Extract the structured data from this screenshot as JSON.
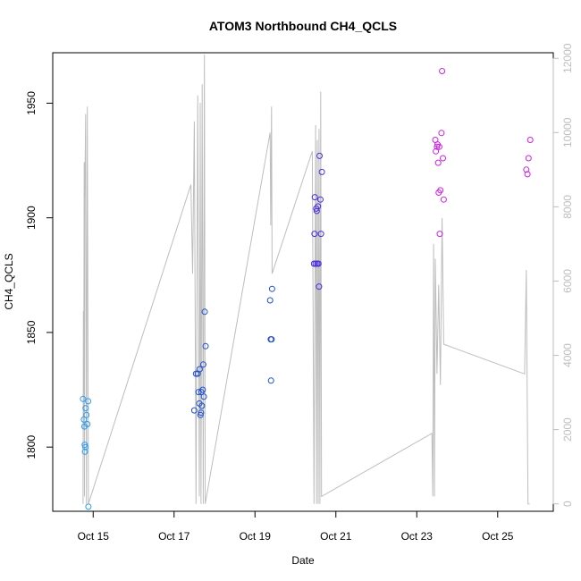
{
  "chart_data": {
    "type": "scatter",
    "title": "ATOM3 Northbound CH4_QCLS",
    "xlabel": "Date",
    "ylabel": "CH4_QCLS",
    "xlim": [
      "2017-10-14 00:00",
      "2017-10-26 09:00"
    ],
    "ylim": [
      1772,
      1972
    ],
    "x_ticks": [
      {
        "label": "Oct 15",
        "x": "2017-10-15 00:00"
      },
      {
        "label": "Oct 17",
        "x": "2017-10-17 00:00"
      },
      {
        "label": "Oct 19",
        "x": "2017-10-19 00:00"
      },
      {
        "label": "Oct 21",
        "x": "2017-10-21 00:00"
      },
      {
        "label": "Oct 23",
        "x": "2017-10-23 00:00"
      },
      {
        "label": "Oct 25",
        "x": "2017-10-25 00:00"
      }
    ],
    "y_ticks": [
      1800,
      1850,
      1900,
      1950
    ],
    "y2_ticks": [
      0,
      2000,
      4000,
      6000,
      8000,
      10000,
      12000
    ],
    "y2lim": [
      -200,
      12150
    ],
    "grid": false,
    "series": [
      {
        "style": "points",
        "color": "#2a9df4",
        "points": [
          [
            "2017-10-14 18:00",
            1821
          ],
          [
            "2017-10-14 18:30",
            1812
          ],
          [
            "2017-10-14 18:50",
            1809
          ],
          [
            "2017-10-14 19:00",
            1801
          ],
          [
            "2017-10-14 19:10",
            1798
          ],
          [
            "2017-10-14 19:20",
            1800
          ],
          [
            "2017-10-14 19:30",
            1817
          ],
          [
            "2017-10-14 20:00",
            1814
          ],
          [
            "2017-10-14 20:30",
            1810
          ],
          [
            "2017-10-14 21:00",
            1820
          ],
          [
            "2017-10-14 21:10",
            1774
          ]
        ]
      },
      {
        "style": "points",
        "color": "#1f4fd1",
        "points": [
          [
            "2017-10-17 12:00",
            1816
          ],
          [
            "2017-10-17 13:00",
            1832
          ],
          [
            "2017-10-17 14:00",
            1832
          ],
          [
            "2017-10-17 14:30",
            1824
          ],
          [
            "2017-10-17 15:00",
            1819
          ],
          [
            "2017-10-17 15:10",
            1834
          ],
          [
            "2017-10-17 15:40",
            1814
          ],
          [
            "2017-10-17 16:00",
            1815
          ],
          [
            "2017-10-17 16:10",
            1824
          ],
          [
            "2017-10-17 16:30",
            1818
          ],
          [
            "2017-10-17 17:00",
            1825
          ],
          [
            "2017-10-17 17:20",
            1836
          ],
          [
            "2017-10-17 17:40",
            1822
          ],
          [
            "2017-10-17 18:10",
            1859
          ],
          [
            "2017-10-17 18:40",
            1844
          ],
          [
            "2017-10-19 09:00",
            1864
          ],
          [
            "2017-10-19 09:20",
            1847
          ],
          [
            "2017-10-19 09:30",
            1829
          ],
          [
            "2017-10-19 09:50",
            1847
          ],
          [
            "2017-10-19 10:10",
            1869
          ]
        ]
      },
      {
        "style": "points",
        "color": "#4b2de0",
        "points": [
          [
            "2017-10-20 11:00",
            1880
          ],
          [
            "2017-10-20 11:20",
            1893
          ],
          [
            "2017-10-20 11:30",
            1909
          ],
          [
            "2017-10-20 12:00",
            1880
          ],
          [
            "2017-10-20 12:20",
            1904
          ],
          [
            "2017-10-20 12:40",
            1903
          ],
          [
            "2017-10-20 13:00",
            1880
          ],
          [
            "2017-10-20 13:20",
            1905
          ],
          [
            "2017-10-20 13:40",
            1880
          ],
          [
            "2017-10-20 14:00",
            1870
          ],
          [
            "2017-10-20 14:20",
            1927
          ],
          [
            "2017-10-20 14:50",
            1908
          ],
          [
            "2017-10-20 15:10",
            1893
          ],
          [
            "2017-10-20 15:40",
            1920
          ]
        ]
      },
      {
        "style": "points",
        "color": "#cc22e0",
        "points": [
          [
            "2017-10-23 11:00",
            1934
          ],
          [
            "2017-10-23 11:20",
            1929
          ],
          [
            "2017-10-23 12:00",
            1931
          ],
          [
            "2017-10-23 12:20",
            1932
          ],
          [
            "2017-10-23 12:40",
            1924
          ],
          [
            "2017-10-23 13:00",
            1911
          ],
          [
            "2017-10-23 13:20",
            1931
          ],
          [
            "2017-10-23 13:40",
            1893
          ],
          [
            "2017-10-23 14:00",
            1912
          ],
          [
            "2017-10-23 14:40",
            1937
          ],
          [
            "2017-10-23 15:00",
            1964
          ],
          [
            "2017-10-23 15:30",
            1926
          ],
          [
            "2017-10-23 16:00",
            1908
          ],
          [
            "2017-10-25 17:00",
            1921
          ],
          [
            "2017-10-25 17:40",
            1919
          ],
          [
            "2017-10-25 18:20",
            1926
          ],
          [
            "2017-10-25 19:20",
            1934
          ]
        ]
      },
      {
        "style": "line",
        "axis": "right",
        "color": "#bdbdbd",
        "points": [
          [
            "2017-10-14 18:00",
            0
          ],
          [
            "2017-10-14 18:10",
            5200
          ],
          [
            "2017-10-14 18:20",
            2000
          ],
          [
            "2017-10-14 18:40",
            9200
          ],
          [
            "2017-10-14 18:50",
            200
          ],
          [
            "2017-10-14 19:00",
            8200
          ],
          [
            "2017-10-14 19:30",
            10500
          ],
          [
            "2017-10-14 20:00",
            0
          ],
          [
            "2017-10-14 20:30",
            10700
          ],
          [
            "2017-10-14 21:10",
            0
          ],
          [
            "2017-10-17 10:00",
            8600
          ],
          [
            "2017-10-17 11:00",
            6200
          ],
          [
            "2017-10-17 12:00",
            10300
          ],
          [
            "2017-10-17 13:00",
            0
          ],
          [
            "2017-10-17 14:00",
            11000
          ],
          [
            "2017-10-17 15:00",
            200
          ],
          [
            "2017-10-17 15:30",
            10800
          ],
          [
            "2017-10-17 16:00",
            0
          ],
          [
            "2017-10-17 16:40",
            11300
          ],
          [
            "2017-10-17 17:20",
            0
          ],
          [
            "2017-10-17 18:00",
            12100
          ],
          [
            "2017-10-17 18:30",
            0
          ],
          [
            "2017-10-19 09:00",
            10000
          ],
          [
            "2017-10-19 09:20",
            7500
          ],
          [
            "2017-10-19 09:50",
            10700
          ],
          [
            "2017-10-19 10:10",
            6200
          ],
          [
            "2017-10-20 10:00",
            9500
          ],
          [
            "2017-10-20 11:00",
            0
          ],
          [
            "2017-10-20 12:00",
            10200
          ],
          [
            "2017-10-20 12:30",
            0
          ],
          [
            "2017-10-20 13:00",
            9800
          ],
          [
            "2017-10-20 13:30",
            0
          ],
          [
            "2017-10-20 14:00",
            10100
          ],
          [
            "2017-10-20 14:30",
            0
          ],
          [
            "2017-10-20 15:00",
            11100
          ],
          [
            "2017-10-20 15:30",
            200
          ],
          [
            "2017-10-23 09:00",
            1900
          ],
          [
            "2017-10-23 09:30",
            200
          ],
          [
            "2017-10-23 10:00",
            7000
          ],
          [
            "2017-10-23 10:30",
            200
          ],
          [
            "2017-10-23 11:00",
            6600
          ],
          [
            "2017-10-23 12:00",
            3500
          ],
          [
            "2017-10-23 13:00",
            5900
          ],
          [
            "2017-10-23 14:00",
            3200
          ],
          [
            "2017-10-23 15:00",
            7700
          ],
          [
            "2017-10-23 16:00",
            4300
          ],
          [
            "2017-10-25 16:00",
            3500
          ],
          [
            "2017-10-25 17:00",
            6300
          ],
          [
            "2017-10-25 18:00",
            0
          ],
          [
            "2017-10-25 19:00",
            0
          ]
        ]
      }
    ]
  }
}
